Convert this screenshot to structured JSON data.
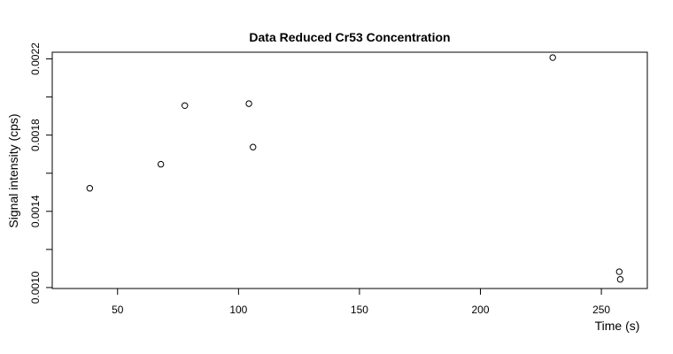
{
  "chart_data": {
    "type": "scatter",
    "title": "Data Reduced Cr53 Concentration",
    "xlabel": "Time (s)",
    "ylabel": "Signal intensity (cps)",
    "xlim": [
      23,
      269
    ],
    "ylim": [
      0.000995,
      0.002235
    ],
    "x_ticks": [
      50,
      100,
      150,
      200,
      250
    ],
    "x_tick_labels": [
      "50",
      "100",
      "150",
      "200",
      "250"
    ],
    "y_ticks": [
      0.001,
      0.0014,
      0.0018,
      0.0022
    ],
    "y_tick_labels": [
      "0.0010",
      "0.0014",
      "0.0018",
      "0.0022"
    ],
    "grid": false,
    "marker": "open-circle",
    "colors": {
      "axis": "#000000",
      "points": "#000000",
      "background": "#ffffff"
    },
    "points": [
      {
        "x": 38.5,
        "y": 0.001521
      },
      {
        "x": 67.9,
        "y": 0.001647
      },
      {
        "x": 77.8,
        "y": 0.001955
      },
      {
        "x": 104.3,
        "y": 0.001965
      },
      {
        "x": 106.0,
        "y": 0.001737
      },
      {
        "x": 229.9,
        "y": 0.002207
      },
      {
        "x": 257.4,
        "y": 0.001083
      },
      {
        "x": 257.8,
        "y": 0.001043
      }
    ]
  }
}
